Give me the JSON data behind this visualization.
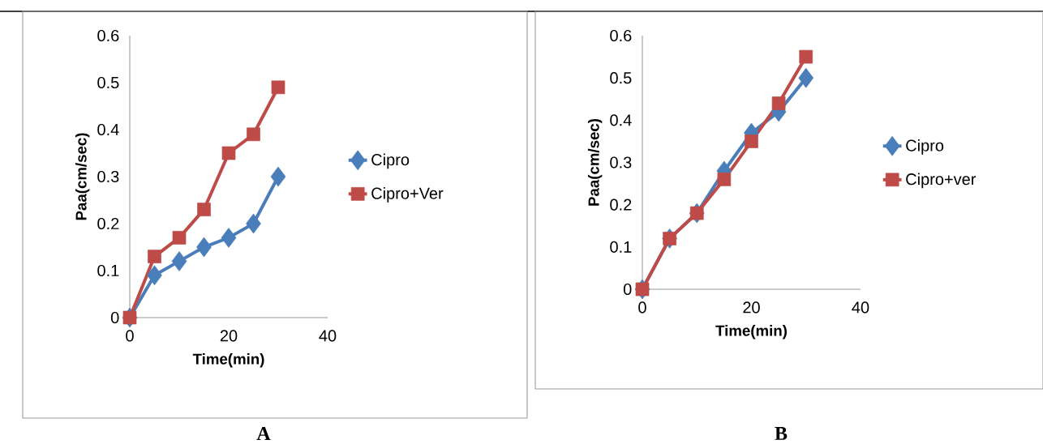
{
  "chart_data": [
    {
      "type": "line",
      "title": "A",
      "xlabel": "Time(min)",
      "ylabel": "Paa(cm/sec)",
      "x": [
        0,
        5,
        10,
        15,
        20,
        25,
        30
      ],
      "xlim": [
        0,
        40
      ],
      "xticks": [
        0,
        20,
        40
      ],
      "ylim": [
        0,
        0.6
      ],
      "yticks": [
        0,
        0.1,
        0.2,
        0.3,
        0.4,
        0.5,
        0.6
      ],
      "legend": "right",
      "grid": false,
      "series": [
        {
          "name": "Cipro",
          "color": "#4a7ebb",
          "marker": "diamond",
          "values": [
            0,
            0.09,
            0.12,
            0.15,
            0.17,
            0.2,
            0.3
          ]
        },
        {
          "name": "Cipro+Ver",
          "color": "#be4b48",
          "marker": "square",
          "values": [
            0,
            0.13,
            0.17,
            0.23,
            0.35,
            0.39,
            0.49
          ]
        }
      ]
    },
    {
      "type": "line",
      "title": "B",
      "xlabel": "Time(min)",
      "ylabel": "Paa(cm/sec)",
      "x": [
        0,
        5,
        10,
        15,
        20,
        25,
        30
      ],
      "xlim": [
        0,
        40
      ],
      "xticks": [
        0,
        20,
        40
      ],
      "ylim": [
        0,
        0.6
      ],
      "yticks": [
        0,
        0.1,
        0.2,
        0.3,
        0.4,
        0.5,
        0.6
      ],
      "legend": "right",
      "grid": false,
      "series": [
        {
          "name": "Cipro",
          "color": "#4a7ebb",
          "marker": "diamond",
          "values": [
            0,
            0.12,
            0.18,
            0.28,
            0.37,
            0.42,
            0.5
          ]
        },
        {
          "name": "Cipro+ver",
          "color": "#be4b48",
          "marker": "square",
          "values": [
            0,
            0.12,
            0.18,
            0.26,
            0.35,
            0.44,
            0.55
          ]
        }
      ]
    }
  ]
}
